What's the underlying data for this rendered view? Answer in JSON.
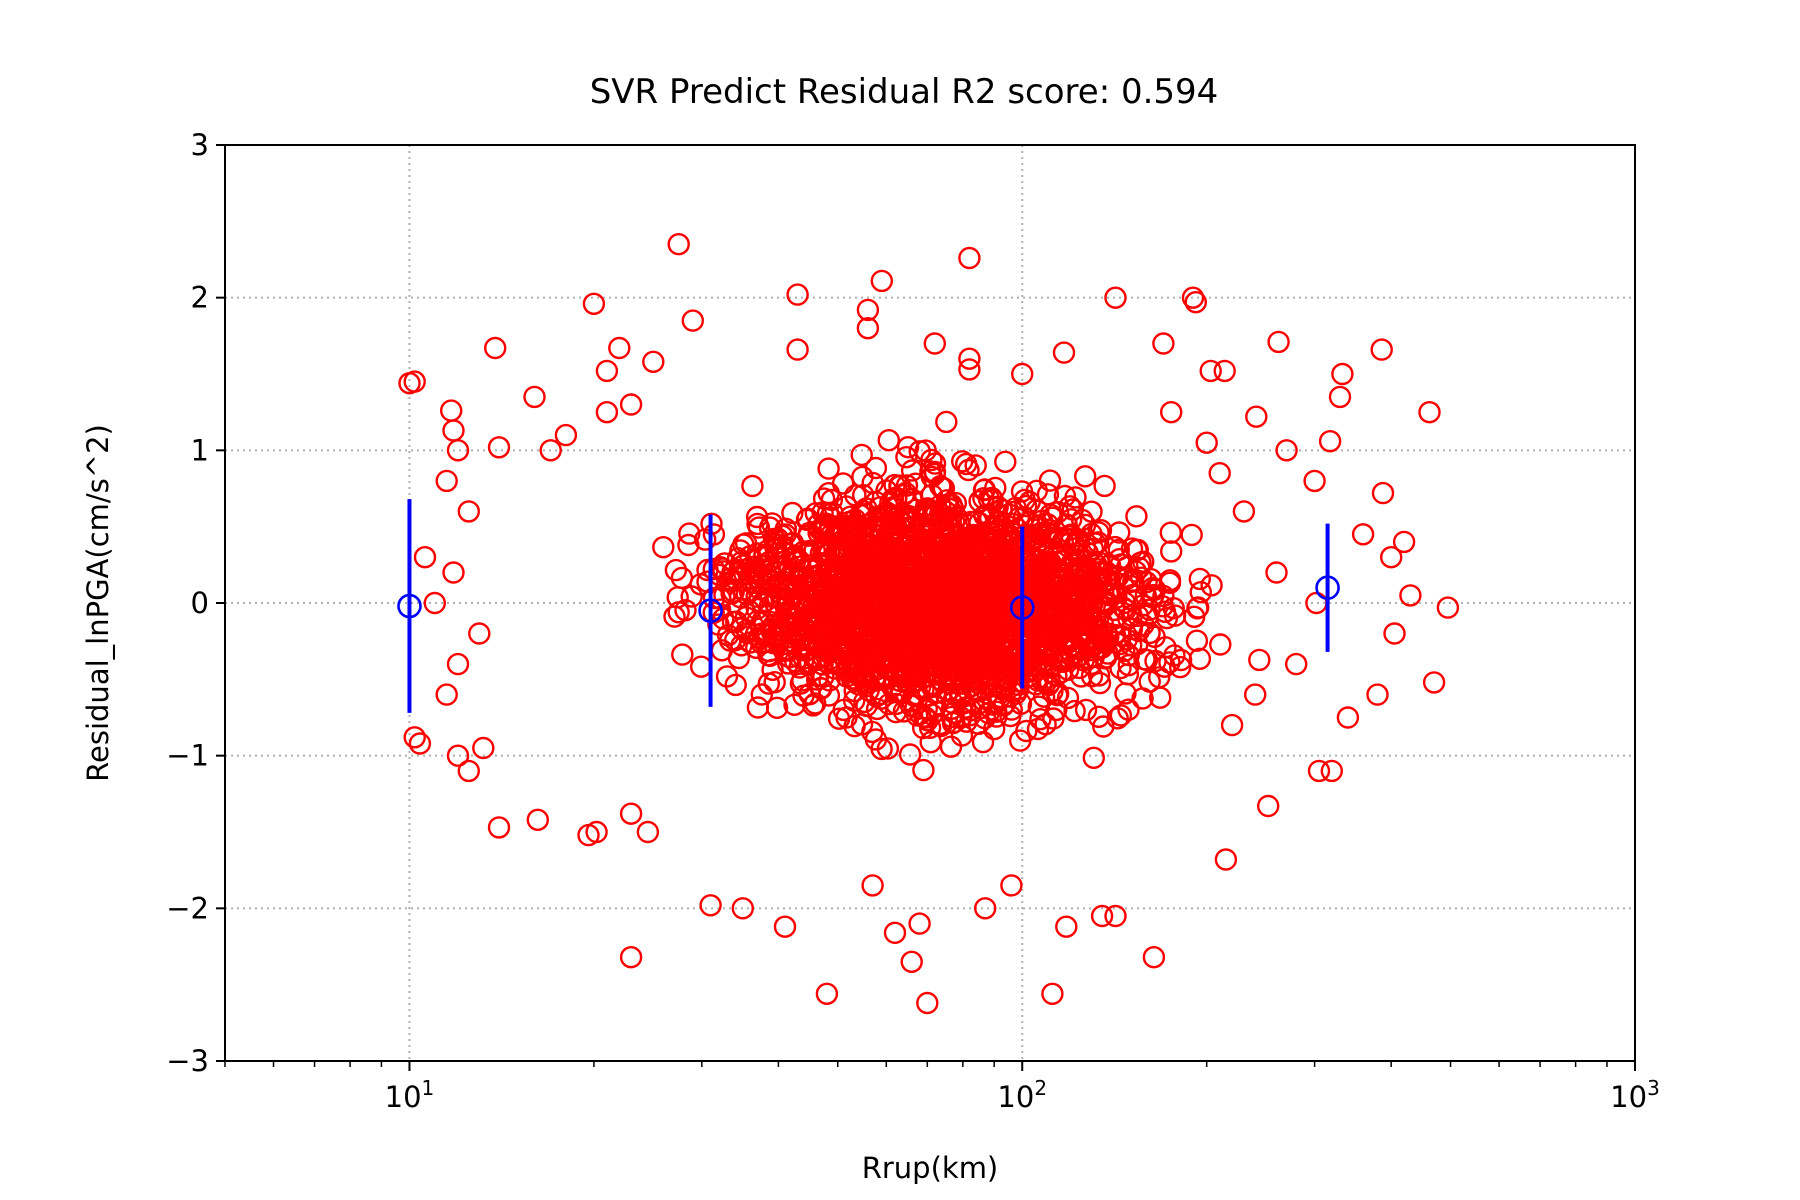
{
  "chart_data": {
    "type": "scatter",
    "title": "SVR Predict Residual R2 score: 0.594",
    "xlabel": "Rrup(km)",
    "ylabel": "Residual_lnPGA(cm/s^2)",
    "xscale": "log",
    "xlim": [
      5,
      1000
    ],
    "ylim": [
      -3,
      3
    ],
    "grid": true,
    "x_ticks": [
      {
        "value": 10,
        "base": "10",
        "exp": "1"
      },
      {
        "value": 100,
        "base": "10",
        "exp": "2"
      },
      {
        "value": 1000,
        "base": "10",
        "exp": "3"
      }
    ],
    "y_ticks": [
      {
        "value": -3,
        "label": "−3"
      },
      {
        "value": -2,
        "label": "−2"
      },
      {
        "value": -1,
        "label": "−1"
      },
      {
        "value": 0,
        "label": "0"
      },
      {
        "value": 1,
        "label": "1"
      },
      {
        "value": 2,
        "label": "2"
      },
      {
        "value": 3,
        "label": "3"
      }
    ],
    "scatter_color": "#ff0000",
    "errorbar_color": "#0000ff",
    "points": [
      [
        27.5,
        2.35
      ],
      [
        82,
        2.26
      ],
      [
        59,
        2.11
      ],
      [
        43,
        2.02
      ],
      [
        142,
        2.0
      ],
      [
        190,
        2.0
      ],
      [
        192,
        1.97
      ],
      [
        20,
        1.96
      ],
      [
        56,
        1.92
      ],
      [
        29,
        1.85
      ],
      [
        56,
        1.8
      ],
      [
        13.8,
        1.67
      ],
      [
        22,
        1.67
      ],
      [
        43,
        1.66
      ],
      [
        72,
        1.7
      ],
      [
        170,
        1.7
      ],
      [
        262,
        1.71
      ],
      [
        386,
        1.66
      ],
      [
        117,
        1.64
      ],
      [
        82,
        1.6
      ],
      [
        82,
        1.53
      ],
      [
        25,
        1.58
      ],
      [
        21,
        1.52
      ],
      [
        100,
        1.5
      ],
      [
        203,
        1.52
      ],
      [
        214,
        1.52
      ],
      [
        333,
        1.5
      ],
      [
        10,
        1.44
      ],
      [
        10.2,
        1.45
      ],
      [
        16,
        1.35
      ],
      [
        330,
        1.35
      ],
      [
        11.7,
        1.26
      ],
      [
        11.8,
        1.13
      ],
      [
        462,
        1.25
      ],
      [
        21,
        1.25
      ],
      [
        23,
        1.3
      ],
      [
        241,
        1.22
      ],
      [
        175,
        1.25
      ],
      [
        18,
        1.1
      ],
      [
        17,
        1.0
      ],
      [
        12,
        1.0
      ],
      [
        14,
        1.02
      ],
      [
        200,
        1.05
      ],
      [
        270,
        1.0
      ],
      [
        318,
        1.06
      ],
      [
        210,
        0.85
      ],
      [
        388,
        0.72
      ],
      [
        11.5,
        0.8
      ],
      [
        12.5,
        0.6
      ],
      [
        10.6,
        0.3
      ],
      [
        11.8,
        0.2
      ],
      [
        11,
        0.0
      ],
      [
        13,
        -0.2
      ],
      [
        12,
        -0.4
      ],
      [
        11.5,
        -0.6
      ],
      [
        10.2,
        -0.88
      ],
      [
        10.4,
        -0.92
      ],
      [
        12,
        -1.0
      ],
      [
        12.5,
        -1.1
      ],
      [
        13.2,
        -0.95
      ],
      [
        14,
        -1.47
      ],
      [
        16.2,
        -1.42
      ],
      [
        19.6,
        -1.52
      ],
      [
        20.2,
        -1.5
      ],
      [
        23,
        -1.38
      ],
      [
        24.5,
        -1.5
      ],
      [
        31,
        -1.98
      ],
      [
        35,
        -2.0
      ],
      [
        41,
        -2.12
      ],
      [
        23,
        -2.32
      ],
      [
        48,
        -2.56
      ],
      [
        57,
        -1.85
      ],
      [
        62,
        -2.16
      ],
      [
        66,
        -2.35
      ],
      [
        70,
        -2.62
      ],
      [
        68,
        -2.1
      ],
      [
        87,
        -2.0
      ],
      [
        112,
        -2.56
      ],
      [
        96,
        -1.85
      ],
      [
        118,
        -2.12
      ],
      [
        135,
        -2.05
      ],
      [
        142,
        -2.05
      ],
      [
        164,
        -2.32
      ],
      [
        215,
        -1.68
      ],
      [
        252,
        -1.33
      ],
      [
        305,
        -1.1
      ],
      [
        320,
        -1.1
      ],
      [
        470,
        -0.52
      ],
      [
        495,
        -0.03
      ],
      [
        430,
        0.05
      ],
      [
        420,
        0.4
      ],
      [
        400,
        0.3
      ],
      [
        380,
        -0.6
      ],
      [
        340,
        -0.75
      ],
      [
        405,
        -0.2
      ],
      [
        360,
        0.45
      ],
      [
        302,
        0.0
      ],
      [
        280,
        -0.4
      ],
      [
        260,
        0.2
      ],
      [
        240,
        -0.6
      ],
      [
        230,
        0.6
      ],
      [
        220,
        -0.8
      ],
      [
        300,
        0.8
      ]
    ],
    "errorbars": [
      {
        "x": 10.0,
        "mean": -0.02,
        "upper": 0.68,
        "lower": -0.72
      },
      {
        "x": 31.0,
        "mean": -0.05,
        "upper": 0.58,
        "lower": -0.68
      },
      {
        "x": 100.0,
        "mean": -0.03,
        "upper": 0.5,
        "lower": -0.56
      },
      {
        "x": 315.0,
        "mean": 0.1,
        "upper": 0.52,
        "lower": -0.32
      }
    ]
  }
}
